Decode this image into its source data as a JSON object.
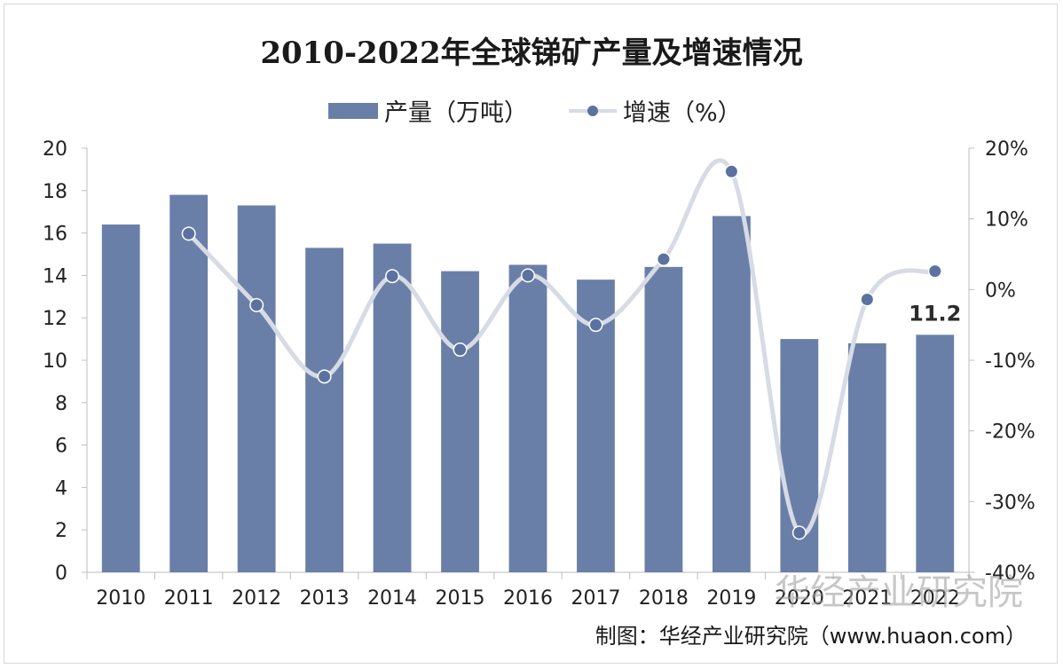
{
  "chart_data": {
    "type": "bar",
    "title": "2010-2022年全球锑矿产量及增速情况",
    "categories": [
      "2010",
      "2011",
      "2012",
      "2013",
      "2014",
      "2015",
      "2016",
      "2017",
      "2018",
      "2019",
      "2020",
      "2021",
      "2022"
    ],
    "series": [
      {
        "name": "产量（万吨）",
        "type": "bar",
        "axis": "left",
        "values": [
          16.4,
          17.8,
          17.3,
          15.3,
          15.5,
          14.2,
          14.5,
          13.8,
          14.4,
          16.8,
          11.0,
          10.8,
          11.2
        ],
        "color": "#6a7fa8"
      },
      {
        "name": "增速（%）",
        "type": "line",
        "axis": "right",
        "values": [
          null,
          7.9,
          -2.2,
          -12.3,
          1.9,
          -8.5,
          2.0,
          -5.0,
          4.3,
          16.7,
          -34.4,
          -1.4,
          2.6
        ],
        "color": "#5b72a0",
        "line_color": "#d6dbe5"
      }
    ],
    "left_axis": {
      "ylim": [
        0,
        20
      ],
      "ticks": [
        "0",
        "2",
        "4",
        "6",
        "8",
        "10",
        "12",
        "14",
        "16",
        "18",
        "20"
      ]
    },
    "right_axis": {
      "ylim": [
        -40,
        20
      ],
      "ticks": [
        "-40%",
        "-30%",
        "-20%",
        "-10%",
        "0%",
        "10%",
        "20%"
      ]
    },
    "data_labels": [
      {
        "category": "2022",
        "series": "产量（万吨）",
        "text": "11.2"
      }
    ],
    "grid": false,
    "legend_position": "top-center"
  },
  "source_text": "制图：华经产业研究院（www.huaon.com）",
  "watermark_text": "华经产业研究院"
}
